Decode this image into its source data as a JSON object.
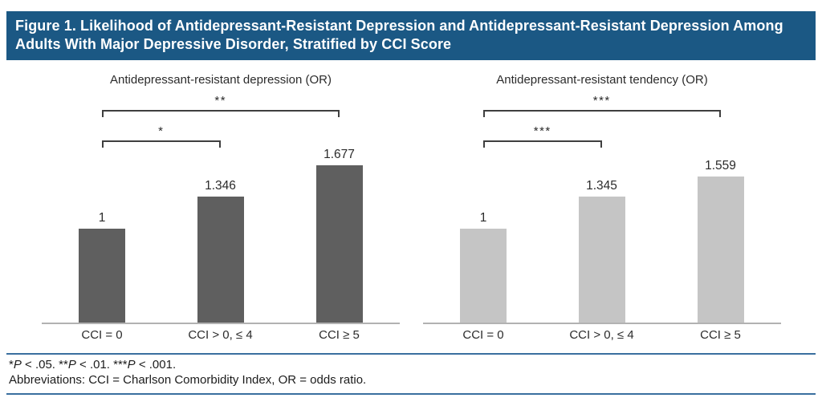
{
  "figure": {
    "title": "Figure 1. Likelihood of Antidepressant-Resistant Depression and Antidepressant-Resistant Depression Among Adults With Major Depressive Disorder, Stratified by CCI Score"
  },
  "footer": {
    "significance_note": "*P < .05.   **P < .01.   ***P < .001.",
    "abbreviations_note": "Abbreviations: CCI = Charlson Comorbidity Index, OR = odds ratio."
  },
  "colors": {
    "header_bg": "#1b5884",
    "header_text": "#ffffff",
    "left_bars": "#5f5f5f",
    "right_bars": "#c5c5c5",
    "axis_line": "#b2b2b2",
    "bracket_line": "#3f3f3f",
    "blue_rule": "#3a6f9f"
  },
  "chart_data": [
    {
      "type": "bar",
      "title": "Antidepressant-resistant depression (OR)",
      "categories": [
        "CCI = 0",
        "CCI > 0, ≤ 4",
        "CCI ≥ 5"
      ],
      "values": [
        1,
        1.346,
        1.677
      ],
      "value_labels": [
        "1",
        "1.346",
        "1.677"
      ],
      "bar_color": "#5f5f5f",
      "xlabel": "",
      "ylabel": "",
      "ylim": [
        0,
        1.9
      ],
      "grid": false,
      "legend": "none",
      "significance_brackets": [
        {
          "from": 0,
          "to": 1,
          "label": "*",
          "level": "inner"
        },
        {
          "from": 0,
          "to": 2,
          "label": "**",
          "level": "outer"
        }
      ]
    },
    {
      "type": "bar",
      "title": "Antidepressant-resistant tendency (OR)",
      "categories": [
        "CCI = 0",
        "CCI > 0, ≤ 4",
        "CCI ≥ 5"
      ],
      "values": [
        1,
        1.345,
        1.559
      ],
      "value_labels": [
        "1",
        "1.345",
        "1.559"
      ],
      "bar_color": "#c5c5c5",
      "xlabel": "",
      "ylabel": "",
      "ylim": [
        0,
        1.9
      ],
      "grid": false,
      "legend": "none",
      "significance_brackets": [
        {
          "from": 0,
          "to": 1,
          "label": "***",
          "level": "inner"
        },
        {
          "from": 0,
          "to": 2,
          "label": "***",
          "level": "outer"
        }
      ]
    }
  ]
}
